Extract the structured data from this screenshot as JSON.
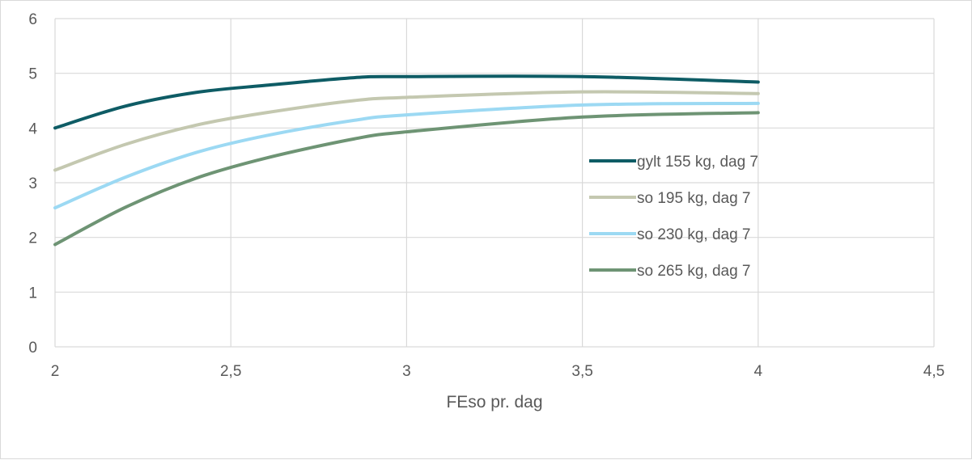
{
  "chart_data": {
    "type": "line",
    "title": "",
    "xlabel": "FEso pr. dag",
    "ylabel": "",
    "xlim": [
      2,
      4.5
    ],
    "ylim": [
      0,
      6
    ],
    "x_ticks": [
      "2",
      "2,5",
      "3",
      "3,5",
      "4",
      "4,5"
    ],
    "y_ticks": [
      "0",
      "1",
      "2",
      "3",
      "4",
      "5",
      "6"
    ],
    "grid": true,
    "legend_position": "right",
    "series": [
      {
        "name": "gylt 155 kg, dag 7",
        "color": "#0e5c65",
        "points": [
          [
            2.0,
            4.0
          ],
          [
            2.2,
            4.4
          ],
          [
            2.4,
            4.65
          ],
          [
            2.6,
            4.78
          ],
          [
            2.85,
            4.92
          ],
          [
            3.0,
            4.94
          ],
          [
            3.5,
            4.94
          ],
          [
            4.0,
            4.84
          ]
        ]
      },
      {
        "name": "so 195 kg, dag 7",
        "color": "#c4c8b0",
        "points": [
          [
            2.0,
            3.23
          ],
          [
            2.2,
            3.7
          ],
          [
            2.4,
            4.05
          ],
          [
            2.6,
            4.28
          ],
          [
            2.85,
            4.5
          ],
          [
            3.0,
            4.56
          ],
          [
            3.5,
            4.66
          ],
          [
            4.0,
            4.63
          ]
        ]
      },
      {
        "name": "so 230 kg, dag 7",
        "color": "#9cd9f3",
        "points": [
          [
            2.0,
            2.54
          ],
          [
            2.2,
            3.1
          ],
          [
            2.4,
            3.55
          ],
          [
            2.6,
            3.86
          ],
          [
            2.85,
            4.14
          ],
          [
            3.0,
            4.24
          ],
          [
            3.5,
            4.42
          ],
          [
            4.0,
            4.45
          ]
        ]
      },
      {
        "name": "so 265 kg, dag 7",
        "color": "#6e9474",
        "points": [
          [
            2.0,
            1.87
          ],
          [
            2.2,
            2.55
          ],
          [
            2.4,
            3.08
          ],
          [
            2.6,
            3.45
          ],
          [
            2.85,
            3.8
          ],
          [
            3.0,
            3.93
          ],
          [
            3.5,
            4.2
          ],
          [
            4.0,
            4.28
          ]
        ]
      }
    ]
  }
}
